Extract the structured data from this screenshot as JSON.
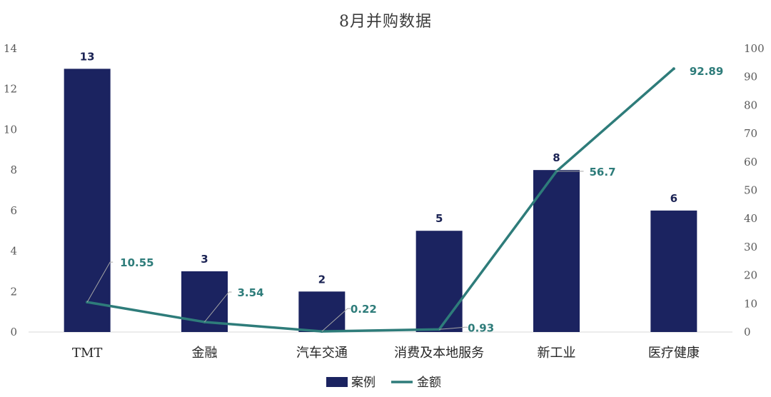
{
  "chart_data": {
    "type": "bar",
    "title": "8月并购数据",
    "categories": [
      "TMT",
      "金融",
      "汽车交通",
      "消费及本地服务",
      "新工业",
      "医疗健康"
    ],
    "series": [
      {
        "name": "案例",
        "type": "bar",
        "axis": "left",
        "color": "#1b2360",
        "values": [
          13,
          3,
          2,
          5,
          8,
          6
        ],
        "labels": [
          "13",
          "3",
          "2",
          "5",
          "8",
          "6"
        ]
      },
      {
        "name": "金额",
        "type": "line",
        "axis": "right",
        "color": "#2e7c7a",
        "values": [
          10.55,
          3.54,
          0.22,
          0.93,
          56.7,
          92.89
        ],
        "labels": [
          "10.55",
          "3.54",
          "0.22",
          "0.93",
          "56.7",
          "92.89"
        ]
      }
    ],
    "y_left": {
      "ylim": [
        0,
        14
      ],
      "ticks": [
        "0",
        "2",
        "4",
        "6",
        "8",
        "10",
        "12",
        "14"
      ]
    },
    "y_right": {
      "ylim": [
        0,
        100
      ],
      "ticks": [
        "0",
        "10",
        "20",
        "30",
        "40",
        "50",
        "60",
        "70",
        "80",
        "90",
        "100"
      ]
    },
    "grid": false,
    "legend": "bottom"
  }
}
